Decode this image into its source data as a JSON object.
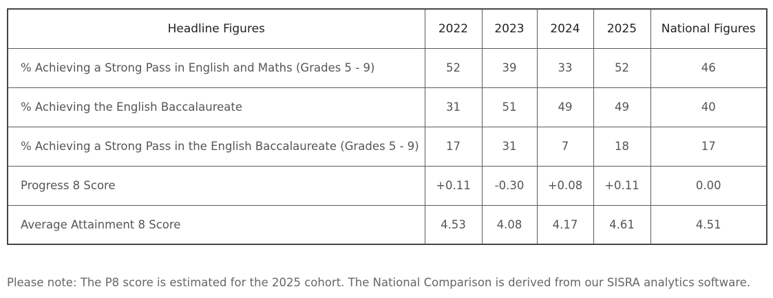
{
  "table": {
    "headers": [
      "Headline Figures",
      "2022",
      "2023",
      "2024",
      "2025",
      "National Figures"
    ],
    "rows": [
      {
        "label": "% Achieving a Strong Pass in English and Maths (Grades 5 - 9)",
        "values": [
          "52",
          "39",
          "33",
          "52",
          "46"
        ]
      },
      {
        "label": "% Achieving the English Baccalaureate",
        "values": [
          "31",
          "51",
          "49",
          "49",
          "40"
        ]
      },
      {
        "label": "% Achieving a Strong Pass in the English Baccalaureate (Grades 5 - 9)",
        "values": [
          "17",
          "31",
          "7",
          "18",
          "17"
        ]
      },
      {
        "label": "Progress 8 Score",
        "values": [
          "+0.11",
          "-0.30",
          "+0.08",
          "+0.11",
          "0.00"
        ]
      },
      {
        "label": "Average Attainment 8 Score",
        "values": [
          "4.53",
          "4.08",
          "4.17",
          "4.61",
          "4.51"
        ]
      }
    ]
  },
  "note": "Please note: The P8 score is estimated for the 2025 cohort. The National Comparison is derived from our SISRA analytics software."
}
